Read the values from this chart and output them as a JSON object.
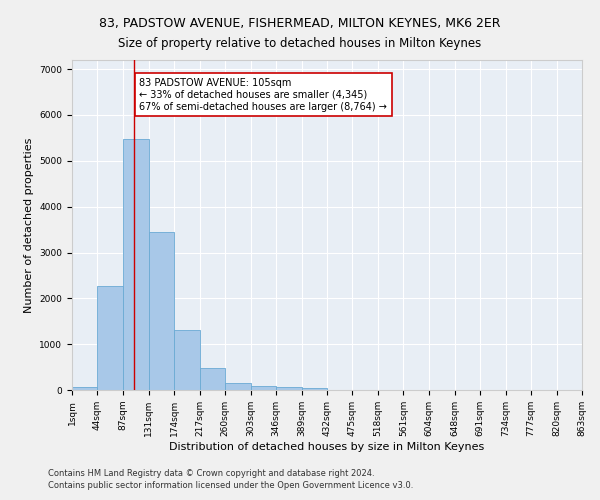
{
  "title1": "83, PADSTOW AVENUE, FISHERMEAD, MILTON KEYNES, MK6 2ER",
  "title2": "Size of property relative to detached houses in Milton Keynes",
  "xlabel": "Distribution of detached houses by size in Milton Keynes",
  "ylabel": "Number of detached properties",
  "bar_color": "#a8c8e8",
  "bar_edge_color": "#6aaad4",
  "annotation_line_color": "#cc0000",
  "annotation_box_color": "#cc0000",
  "footnote1": "Contains HM Land Registry data © Crown copyright and database right 2024.",
  "footnote2": "Contains public sector information licensed under the Open Government Licence v3.0.",
  "annotation_text": "83 PADSTOW AVENUE: 105sqm\n← 33% of detached houses are smaller (4,345)\n67% of semi-detached houses are larger (8,764) →",
  "property_sqm": 105,
  "bin_edges": [
    1,
    44,
    87,
    131,
    174,
    217,
    260,
    303,
    346,
    389,
    432,
    475,
    518,
    561,
    604,
    648,
    691,
    734,
    777,
    820,
    863
  ],
  "bar_heights": [
    75,
    2270,
    5480,
    3450,
    1310,
    470,
    160,
    95,
    65,
    40,
    0,
    0,
    0,
    0,
    0,
    0,
    0,
    0,
    0,
    0
  ],
  "ylim": [
    0,
    7200
  ],
  "yticks": [
    0,
    1000,
    2000,
    3000,
    4000,
    5000,
    6000,
    7000
  ],
  "background_color": "#e8eef5",
  "grid_color": "#ffffff",
  "fig_background": "#f0f0f0",
  "title1_fontsize": 9,
  "title2_fontsize": 8.5,
  "xlabel_fontsize": 8,
  "ylabel_fontsize": 8,
  "tick_fontsize": 6.5,
  "footnote_fontsize": 6,
  "annotation_fontsize": 7
}
